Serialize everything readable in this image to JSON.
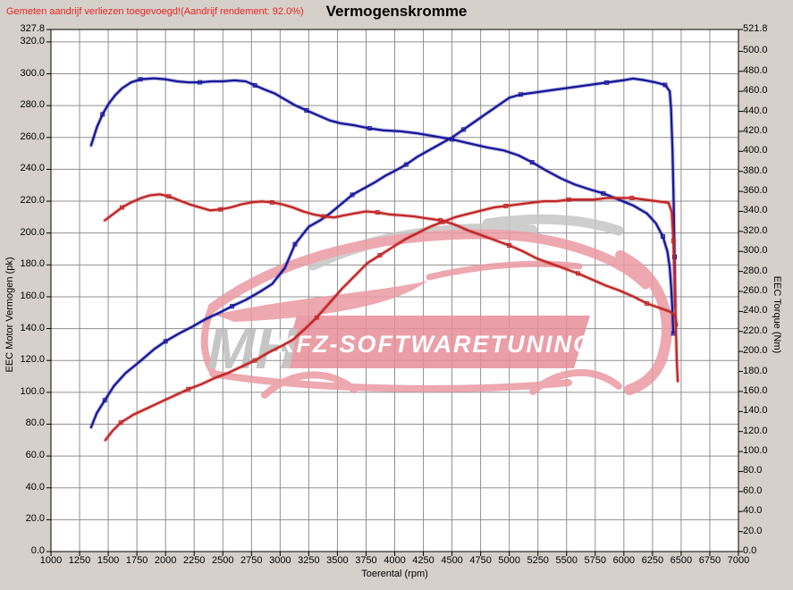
{
  "header": {
    "annotation": "Gemeten aandrijf verliezen toegevoegd!(Aandrijf rendement: 92.0%)",
    "annotation_color": "#ee2222",
    "title": "Vermogenskromme"
  },
  "colors": {
    "background": "#d5d1ca",
    "plot_background": "#ffffff",
    "grid": "#8f8f8f",
    "plot_border": "#000000"
  },
  "watermark": {
    "mh": "MH",
    "banner": "KFZ-SOFTWARETUNING",
    "car_color": "#eb9aa3",
    "gray_color": "#c6c6c6",
    "banner_color": "#e78f99",
    "mh_color": "#bdbdbd",
    "banner_text_color": "#ffffff"
  },
  "chart_data": {
    "type": "line",
    "title": "Vermogenskromme",
    "xlabel": "Toerental (rpm)",
    "ylabel_left": "EEC Motor Vermogen (pk)",
    "ylabel_right": "EEC Torque (Nm)",
    "xlim": [
      1000,
      7000
    ],
    "ylim_left": [
      0,
      327.8
    ],
    "ylim_right": [
      0,
      521.8
    ],
    "grid": true,
    "legend": "none",
    "x_ticks": [
      1000,
      1250,
      1500,
      1750,
      2000,
      2250,
      2500,
      2750,
      3000,
      3250,
      3500,
      3750,
      4000,
      4250,
      4500,
      4750,
      5000,
      5250,
      5500,
      5750,
      6000,
      6250,
      6500,
      6750,
      7000
    ],
    "y_ticks_left": [
      327.8,
      320,
      300,
      280,
      260,
      240,
      220,
      200,
      180,
      160,
      140,
      120,
      100,
      80,
      60,
      40,
      20,
      0
    ],
    "y_ticks_right": [
      521.8,
      500,
      480,
      460,
      440,
      420,
      400,
      380,
      360,
      340,
      320,
      300,
      280,
      260,
      240,
      220,
      200,
      180,
      160,
      140,
      120,
      100,
      80,
      60,
      40,
      20,
      0
    ],
    "series": [
      {
        "name": "tuned_power_pk",
        "axis": "left",
        "color": "#16169b",
        "peak": "297 pk @ 6080 rpm",
        "points": [
          [
            1350,
            78
          ],
          [
            1400,
            87
          ],
          [
            1470,
            95
          ],
          [
            1550,
            104
          ],
          [
            1650,
            112
          ],
          [
            1770,
            119
          ],
          [
            1900,
            127
          ],
          [
            2000,
            132
          ],
          [
            2120,
            137
          ],
          [
            2230,
            141
          ],
          [
            2350,
            146
          ],
          [
            2470,
            150
          ],
          [
            2580,
            154
          ],
          [
            2700,
            158
          ],
          [
            2820,
            163
          ],
          [
            2930,
            168
          ],
          [
            3040,
            178
          ],
          [
            3130,
            193
          ],
          [
            3250,
            204
          ],
          [
            3350,
            208
          ],
          [
            3430,
            212
          ],
          [
            3530,
            218
          ],
          [
            3630,
            224
          ],
          [
            3730,
            228
          ],
          [
            3830,
            232
          ],
          [
            3920,
            236
          ],
          [
            4000,
            239
          ],
          [
            4100,
            243
          ],
          [
            4200,
            248
          ],
          [
            4300,
            252
          ],
          [
            4400,
            256
          ],
          [
            4500,
            260
          ],
          [
            4600,
            265
          ],
          [
            4700,
            270
          ],
          [
            4800,
            275
          ],
          [
            4900,
            280
          ],
          [
            5000,
            285
          ],
          [
            5100,
            287
          ],
          [
            5250,
            288.5
          ],
          [
            5400,
            290
          ],
          [
            5550,
            291.5
          ],
          [
            5700,
            293
          ],
          [
            5850,
            294.5
          ],
          [
            6000,
            296
          ],
          [
            6080,
            297
          ],
          [
            6180,
            296
          ],
          [
            6280,
            294.5
          ],
          [
            6360,
            293
          ],
          [
            6400,
            289
          ],
          [
            6412,
            278
          ],
          [
            6424,
            252
          ],
          [
            6434,
            220
          ],
          [
            6442,
            185
          ],
          [
            6448,
            153
          ]
        ]
      },
      {
        "name": "tuned_torque_nm",
        "axis": "right",
        "color": "#16169b",
        "peak": "473 Nm @ 1900 rpm",
        "points": [
          [
            1350,
            406
          ],
          [
            1400,
            424
          ],
          [
            1450,
            437
          ],
          [
            1500,
            447
          ],
          [
            1560,
            456
          ],
          [
            1620,
            463
          ],
          [
            1700,
            469
          ],
          [
            1780,
            472
          ],
          [
            1900,
            473
          ],
          [
            2000,
            472
          ],
          [
            2100,
            470
          ],
          [
            2200,
            469
          ],
          [
            2300,
            469
          ],
          [
            2400,
            470
          ],
          [
            2500,
            470
          ],
          [
            2600,
            471
          ],
          [
            2700,
            470
          ],
          [
            2780,
            466
          ],
          [
            2860,
            462
          ],
          [
            2950,
            458
          ],
          [
            3040,
            452
          ],
          [
            3130,
            446
          ],
          [
            3230,
            441
          ],
          [
            3330,
            436
          ],
          [
            3430,
            431
          ],
          [
            3530,
            428
          ],
          [
            3650,
            426
          ],
          [
            3780,
            423
          ],
          [
            3900,
            421
          ],
          [
            4050,
            420
          ],
          [
            4200,
            418
          ],
          [
            4350,
            415
          ],
          [
            4500,
            412
          ],
          [
            4650,
            408
          ],
          [
            4800,
            404
          ],
          [
            4950,
            401
          ],
          [
            5080,
            396
          ],
          [
            5200,
            389
          ],
          [
            5320,
            381
          ],
          [
            5450,
            373
          ],
          [
            5570,
            367
          ],
          [
            5700,
            362
          ],
          [
            5820,
            358
          ],
          [
            5950,
            352
          ],
          [
            6080,
            346
          ],
          [
            6200,
            338
          ],
          [
            6280,
            328
          ],
          [
            6340,
            315
          ],
          [
            6380,
            300
          ],
          [
            6400,
            284
          ],
          [
            6414,
            262
          ],
          [
            6424,
            238
          ],
          [
            6432,
            218
          ]
        ]
      },
      {
        "name": "original_power_pk",
        "axis": "left",
        "color": "#c12525",
        "peak": "222 pk @ 6000 rpm",
        "points": [
          [
            1475,
            70
          ],
          [
            1540,
            76
          ],
          [
            1610,
            81
          ],
          [
            1720,
            86
          ],
          [
            1840,
            90
          ],
          [
            1960,
            94
          ],
          [
            2080,
            98
          ],
          [
            2200,
            102
          ],
          [
            2310,
            105
          ],
          [
            2430,
            109
          ],
          [
            2540,
            112
          ],
          [
            2660,
            116
          ],
          [
            2780,
            120
          ],
          [
            2900,
            125
          ],
          [
            3010,
            129
          ],
          [
            3110,
            133
          ],
          [
            3220,
            140
          ],
          [
            3320,
            147
          ],
          [
            3430,
            156
          ],
          [
            3540,
            165
          ],
          [
            3650,
            173
          ],
          [
            3760,
            181
          ],
          [
            3870,
            186
          ],
          [
            3980,
            191
          ],
          [
            4090,
            196
          ],
          [
            4200,
            200
          ],
          [
            4310,
            204
          ],
          [
            4420,
            207
          ],
          [
            4530,
            210
          ],
          [
            4640,
            212
          ],
          [
            4750,
            214
          ],
          [
            4860,
            216
          ],
          [
            4970,
            217
          ],
          [
            5080,
            218
          ],
          [
            5190,
            219
          ],
          [
            5300,
            220
          ],
          [
            5410,
            220
          ],
          [
            5520,
            221
          ],
          [
            5630,
            221
          ],
          [
            5740,
            221
          ],
          [
            5850,
            222
          ],
          [
            5960,
            222
          ],
          [
            6070,
            222
          ],
          [
            6180,
            221
          ],
          [
            6290,
            220
          ],
          [
            6390,
            219
          ],
          [
            6418,
            213
          ],
          [
            6432,
            195
          ],
          [
            6442,
            172
          ],
          [
            6452,
            145
          ],
          [
            6462,
            120
          ],
          [
            6470,
            107
          ]
        ]
      },
      {
        "name": "original_torque_nm",
        "axis": "right",
        "color": "#c12525",
        "peak": "357 Nm @ 1950 rpm",
        "points": [
          [
            1470,
            331
          ],
          [
            1540,
            337
          ],
          [
            1620,
            344
          ],
          [
            1700,
            349
          ],
          [
            1780,
            353
          ],
          [
            1860,
            356
          ],
          [
            1950,
            357
          ],
          [
            2030,
            355
          ],
          [
            2120,
            351
          ],
          [
            2210,
            347
          ],
          [
            2300,
            344
          ],
          [
            2390,
            341
          ],
          [
            2480,
            342
          ],
          [
            2570,
            344
          ],
          [
            2660,
            347
          ],
          [
            2750,
            349
          ],
          [
            2840,
            350
          ],
          [
            2930,
            349
          ],
          [
            3020,
            347
          ],
          [
            3110,
            344
          ],
          [
            3200,
            340
          ],
          [
            3290,
            337
          ],
          [
            3380,
            335
          ],
          [
            3470,
            334
          ],
          [
            3560,
            336
          ],
          [
            3650,
            338
          ],
          [
            3750,
            340
          ],
          [
            3850,
            339
          ],
          [
            3950,
            337
          ],
          [
            4060,
            336
          ],
          [
            4170,
            335
          ],
          [
            4280,
            333
          ],
          [
            4400,
            331
          ],
          [
            4520,
            327
          ],
          [
            4640,
            321
          ],
          [
            4760,
            316
          ],
          [
            4880,
            311
          ],
          [
            5000,
            306
          ],
          [
            5120,
            300
          ],
          [
            5240,
            293
          ],
          [
            5360,
            288
          ],
          [
            5480,
            283
          ],
          [
            5600,
            278
          ],
          [
            5720,
            272
          ],
          [
            5840,
            266
          ],
          [
            5960,
            261
          ],
          [
            6080,
            255
          ],
          [
            6200,
            248
          ],
          [
            6300,
            244
          ],
          [
            6400,
            240
          ],
          [
            6445,
            236
          ],
          [
            6462,
            226
          ]
        ]
      }
    ]
  }
}
